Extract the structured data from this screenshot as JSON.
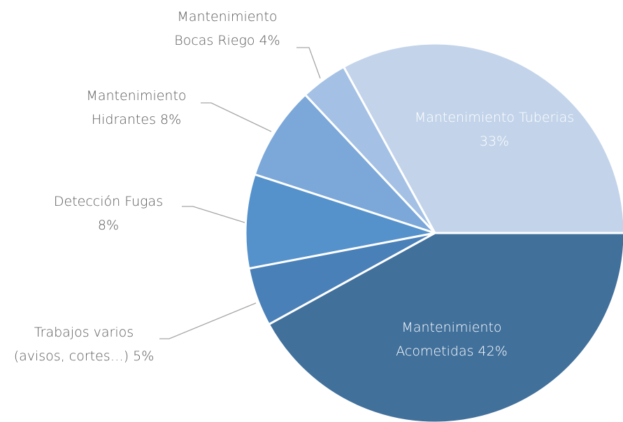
{
  "chart_data": {
    "type": "pie",
    "categories": [
      "Mantenimiento Acometidas",
      "Trabajos varios (avisos, cortes…)",
      "Detección Fugas",
      "Mantenimiento Hidrantes",
      "Mantenimiento Bocas Riego",
      "Mantenimiento Tuberias"
    ],
    "values": [
      42,
      5,
      8,
      8,
      4,
      33
    ],
    "value_labels": [
      "42%",
      "5%",
      "8%",
      "8%",
      "4%",
      "33%"
    ],
    "colors": [
      "#41709b",
      "#4a80b8",
      "#5592cc",
      "#7ba8d9",
      "#a4c1e5",
      "#c3d4ea"
    ]
  }
}
